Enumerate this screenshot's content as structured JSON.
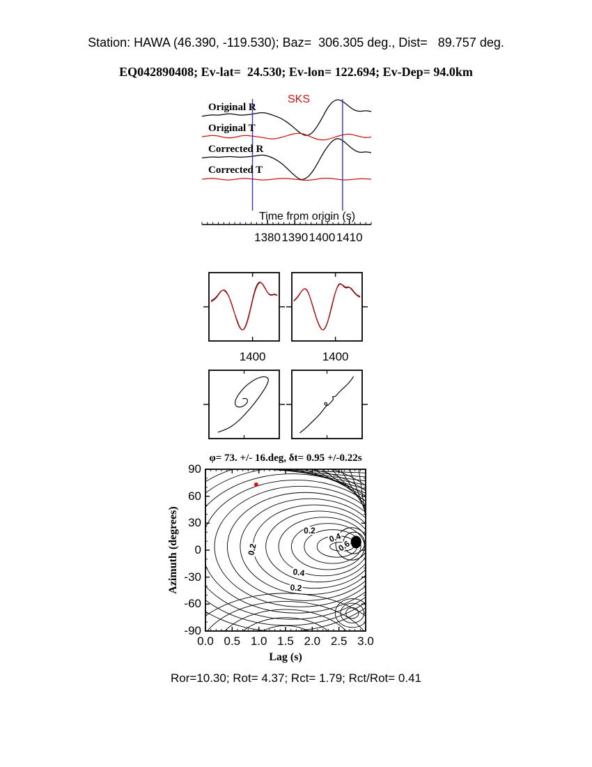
{
  "header": {
    "title": "Station: HAWA (46.390, -119.530); Baz=  306.305 deg., Dist=   89.757 deg.",
    "subtitle": "EQ042890408; Ev-lat=  24.530; Ev-lon= 122.694; Ev-Dep= 94.0km"
  },
  "footer": {
    "stats": "Ror=10.30; Rot= 4.37; Rct= 1.79; Rct/Rot= 0.41"
  },
  "colors": {
    "trace_black": "#000000",
    "trace_red": "#cc1111",
    "window_line": "#3333bb",
    "accent_red": "#dd1111"
  },
  "chart_data": [
    {
      "type": "line",
      "name": "waveform-panel",
      "phase": "SKS",
      "xlabel": "Time from origin (s)",
      "x_start": 1356,
      "x_step": 2,
      "x_end": 1418,
      "x_ticks": [
        1380,
        1390,
        1400,
        1410
      ],
      "x_tick_labels": [
        "1380",
        "1390",
        "1400",
        "1410"
      ],
      "window": [
        1374.5,
        1407.5
      ],
      "series": [
        {
          "name": "Original R",
          "color": "#000000",
          "values": [
            0.05,
            0.1,
            0.12,
            0.1,
            0.15,
            0.18,
            0.15,
            0.1,
            0.12,
            0.15,
            0.2,
            0.25,
            0.2,
            0.1,
            0,
            -0.15,
            -0.35,
            -0.6,
            -0.85,
            -1.0,
            -0.9,
            -0.55,
            -0.05,
            0.5,
            0.85,
            0.95,
            0.8,
            0.55,
            0.35,
            0.3,
            0.35,
            0.3
          ]
        },
        {
          "name": "Original T",
          "color": "#cc1111",
          "values": [
            0,
            0.1,
            0.2,
            0.1,
            -0.1,
            -0.2,
            -0.1,
            0.1,
            0.2,
            0.1,
            0,
            -0.1,
            -0.25,
            -0.35,
            -0.2,
            0,
            0.25,
            0.45,
            0.5,
            0.3,
            -0.05,
            -0.35,
            -0.5,
            -0.4,
            -0.15,
            0.1,
            0.3,
            0.4,
            0.2,
            0,
            -0.15,
            -0.05
          ]
        },
        {
          "name": "Corrected R",
          "color": "#000000",
          "values": [
            0.05,
            0.08,
            0.1,
            0.08,
            0.1,
            0.12,
            0.1,
            0.08,
            0.1,
            0.12,
            0.15,
            0.2,
            0.15,
            0.05,
            -0.1,
            -0.3,
            -0.55,
            -0.8,
            -1.0,
            -0.95,
            -0.7,
            -0.3,
            0.2,
            0.6,
            0.9,
            1.0,
            0.85,
            0.6,
            0.4,
            0.3,
            0.35,
            0.3
          ]
        },
        {
          "name": "Corrected T",
          "color": "#cc1111",
          "values": [
            0,
            0.1,
            0.15,
            0.05,
            -0.1,
            -0.15,
            -0.05,
            0.1,
            0.15,
            0.05,
            -0.05,
            -0.15,
            -0.1,
            0,
            0.1,
            0.15,
            0.1,
            0,
            -0.1,
            -0.2,
            -0.15,
            0,
            0.15,
            0.2,
            0.1,
            -0.05,
            -0.15,
            -0.1,
            0,
            0.1,
            0.05,
            0
          ]
        }
      ]
    },
    {
      "type": "line",
      "name": "waveform-fit-left",
      "x_tick_label": "1400",
      "series": [
        {
          "name": "observed",
          "color": "#000000",
          "values": [
            0.1,
            0.15,
            0.25,
            0.4,
            0.5,
            0.45,
            0.3,
            0.05,
            -0.3,
            -0.65,
            -0.9,
            -1.0,
            -0.85,
            -0.5,
            -0.05,
            0.4,
            0.7,
            0.8,
            0.7,
            0.5,
            0.35,
            0.3,
            0.35,
            0.3
          ]
        },
        {
          "name": "matched",
          "color": "#cc1111",
          "values": [
            0.05,
            0.12,
            0.22,
            0.38,
            0.5,
            0.48,
            0.32,
            0.02,
            -0.32,
            -0.6,
            -0.88,
            -1.0,
            -0.88,
            -0.55,
            -0.1,
            0.35,
            0.65,
            0.78,
            0.72,
            0.52,
            0.33,
            0.28,
            0.33,
            0.28
          ]
        }
      ]
    },
    {
      "type": "line",
      "name": "waveform-fit-right",
      "x_tick_label": "1400",
      "series": [
        {
          "name": "observed",
          "color": "#000000",
          "values": [
            0.1,
            0.2,
            0.35,
            0.5,
            0.55,
            0.4,
            0.1,
            -0.25,
            -0.6,
            -0.85,
            -1.0,
            -0.9,
            -0.6,
            -0.2,
            0.25,
            0.6,
            0.75,
            0.65,
            0.55,
            0.6,
            0.55,
            0.4,
            0.3,
            0.25
          ]
        },
        {
          "name": "matched",
          "color": "#cc1111",
          "values": [
            0.08,
            0.18,
            0.33,
            0.5,
            0.56,
            0.42,
            0.08,
            -0.28,
            -0.62,
            -0.87,
            -1.0,
            -0.88,
            -0.58,
            -0.15,
            0.28,
            0.58,
            0.72,
            0.68,
            0.58,
            0.62,
            0.52,
            0.38,
            0.28,
            0.22
          ]
        }
      ]
    },
    {
      "type": "scatter",
      "name": "particle-motion-original",
      "points": [
        [
          -0.85,
          -0.9
        ],
        [
          -0.55,
          -0.8
        ],
        [
          -0.25,
          -0.6
        ],
        [
          0.05,
          -0.3
        ],
        [
          0.35,
          0.05
        ],
        [
          0.6,
          0.4
        ],
        [
          0.75,
          0.65
        ],
        [
          0.8,
          0.82
        ],
        [
          0.7,
          0.9
        ],
        [
          0.5,
          0.88
        ],
        [
          0.25,
          0.75
        ],
        [
          0.0,
          0.55
        ],
        [
          -0.2,
          0.3
        ],
        [
          -0.3,
          0.1
        ],
        [
          -0.28,
          -0.05
        ],
        [
          -0.15,
          -0.1
        ],
        [
          0.0,
          -0.05
        ],
        [
          0.1,
          0.05
        ],
        [
          0.12,
          0.15
        ],
        [
          0.05,
          0.2
        ],
        [
          -0.05,
          0.18
        ]
      ]
    },
    {
      "type": "scatter",
      "name": "particle-motion-corrected",
      "points": [
        [
          -0.88,
          -0.92
        ],
        [
          -0.7,
          -0.78
        ],
        [
          -0.52,
          -0.6
        ],
        [
          -0.35,
          -0.44
        ],
        [
          -0.2,
          -0.28
        ],
        [
          -0.08,
          -0.12
        ],
        [
          0.02,
          0.0
        ],
        [
          -0.04,
          0.08
        ],
        [
          -0.1,
          0.02
        ],
        [
          0.0,
          -0.06
        ],
        [
          0.12,
          0.06
        ],
        [
          0.22,
          0.18
        ],
        [
          0.16,
          0.26
        ],
        [
          0.26,
          0.24
        ],
        [
          0.36,
          0.36
        ],
        [
          0.5,
          0.5
        ],
        [
          0.64,
          0.62
        ],
        [
          0.76,
          0.76
        ],
        [
          0.86,
          0.9
        ]
      ]
    },
    {
      "type": "contour",
      "name": "splitting-error-surface",
      "title_text": "φ= 73. +/- 16.deg, δt= 0.95 +/-0.22s",
      "xlabel": "Lag (s)",
      "ylabel": "Azimuth (degrees)",
      "xlim": [
        0,
        3
      ],
      "ylim": [
        -90,
        90
      ],
      "x_ticks": [
        0,
        0.5,
        1,
        1.5,
        2,
        2.5,
        3
      ],
      "x_tick_labels": [
        "0.0",
        "0.5",
        "1.0",
        "1.5",
        "2.0",
        "2.5",
        "3.0"
      ],
      "y_ticks": [
        90,
        60,
        30,
        0,
        -30,
        -60,
        -90
      ],
      "y_tick_labels": [
        "90",
        "60",
        "30",
        "0",
        "-30",
        "-60",
        "-90"
      ],
      "levels": [
        0.2,
        0.4,
        0.6
      ],
      "solution": {
        "phi_deg": 73,
        "phi_err_deg": 16,
        "dt_s": 0.95,
        "dt_err_s": 0.22,
        "point": [
          0.95,
          73
        ]
      },
      "contour_labels": [
        {
          "text": "0.2",
          "lag": 1.95,
          "az": 22,
          "rot": 0
        },
        {
          "text": "0.4",
          "lag": 2.42,
          "az": 14,
          "rot": -20
        },
        {
          "text": "0.6",
          "lag": 2.6,
          "az": 5,
          "rot": -35
        },
        {
          "text": "0.2",
          "lag": 0.88,
          "az": 1,
          "rot": -78
        },
        {
          "text": "0.4",
          "lag": 1.75,
          "az": -25,
          "rot": 8
        },
        {
          "text": "0.2",
          "lag": 1.7,
          "az": -42,
          "rot": 4
        }
      ]
    }
  ]
}
